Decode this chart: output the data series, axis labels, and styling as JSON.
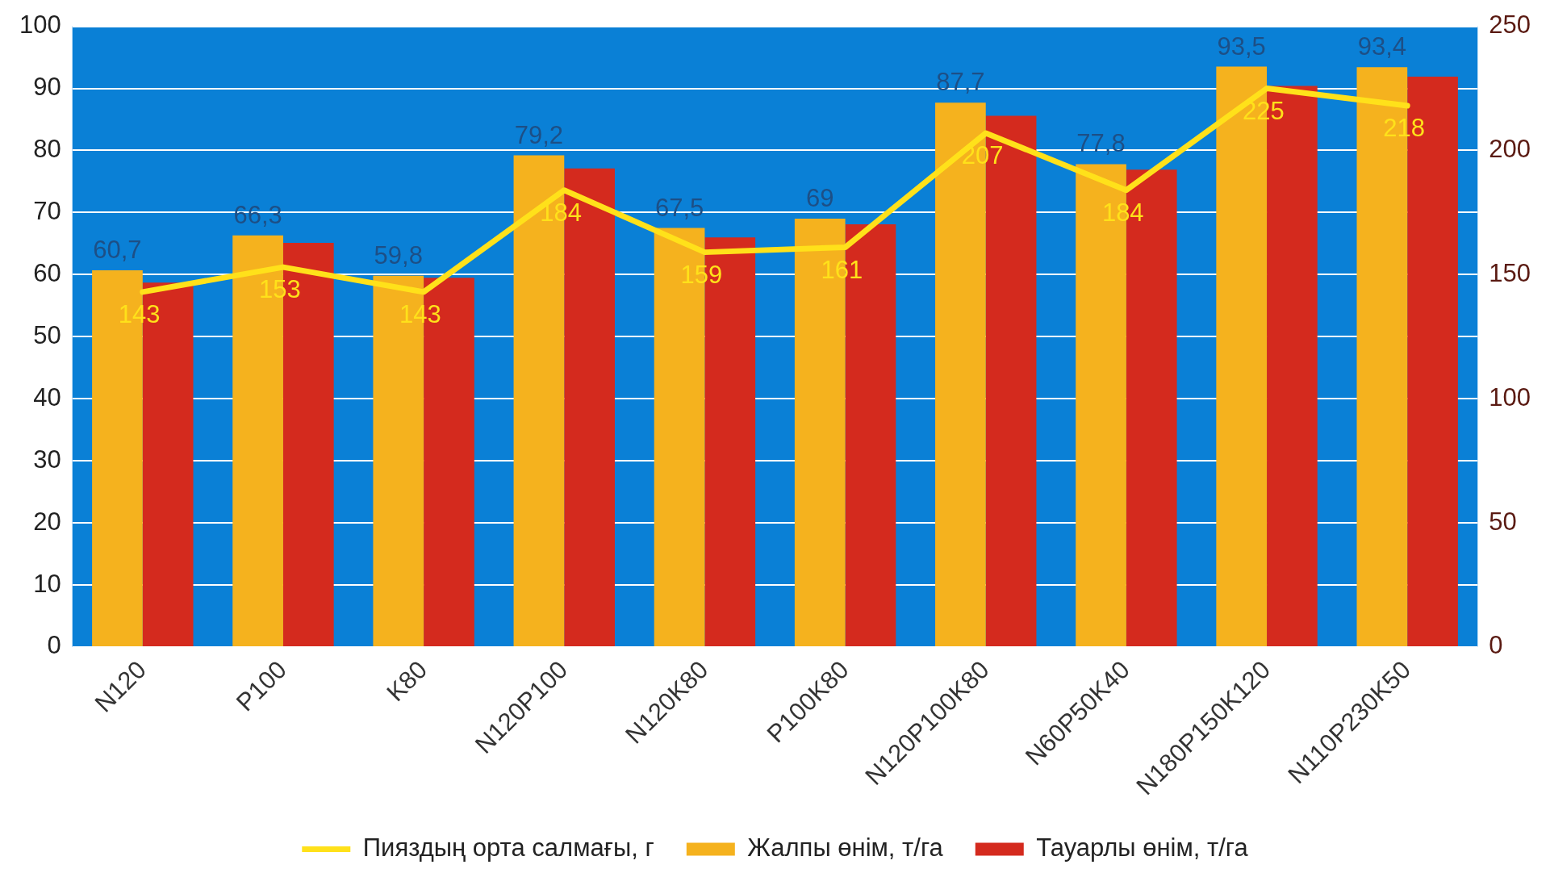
{
  "chart_data": {
    "type": "bar",
    "categories": [
      "N120",
      "P100",
      "K80",
      "N120P100",
      "N120K80",
      "P100K80",
      "N120P100K80",
      "N60P50K40",
      "N180P150K120",
      "N110P230K50"
    ],
    "series": [
      {
        "name": "Жалпы өнім, т/га",
        "color": "#f5b21e",
        "values": [
          60.7,
          66.3,
          59.8,
          79.2,
          67.5,
          69,
          87.7,
          77.8,
          93.5,
          93.4
        ],
        "value_labels": [
          "60,7",
          "66,3",
          "59,8",
          "79,2",
          "67,5",
          "69",
          "87,7",
          "77,8",
          "93,5",
          "93,4"
        ]
      },
      {
        "name": "Тауарлы өнім, т/га",
        "color": "#d42a1e",
        "values": [
          58.7,
          65.1,
          59.5,
          77.1,
          66,
          68.1,
          85.6,
          76.9,
          90.4,
          91.9
        ]
      },
      {
        "name": "Пияздың орта салмағы, г",
        "type": "line",
        "axis": "y2",
        "color": "#ffe11a",
        "values": [
          143,
          153,
          143,
          184,
          159,
          161,
          207,
          184,
          225,
          218
        ],
        "value_labels": [
          "143",
          "153",
          "143",
          "184",
          "159",
          "161",
          "207",
          "184",
          "225",
          "218"
        ]
      }
    ],
    "ylim": [
      0,
      100
    ],
    "yticks": [
      0,
      10,
      20,
      30,
      40,
      50,
      60,
      70,
      80,
      90,
      100
    ],
    "y2lim": [
      0,
      250
    ],
    "y2ticks": [
      0,
      50,
      100,
      150,
      200,
      250
    ],
    "grid": "y",
    "legend": "bottom",
    "marker": "none"
  }
}
